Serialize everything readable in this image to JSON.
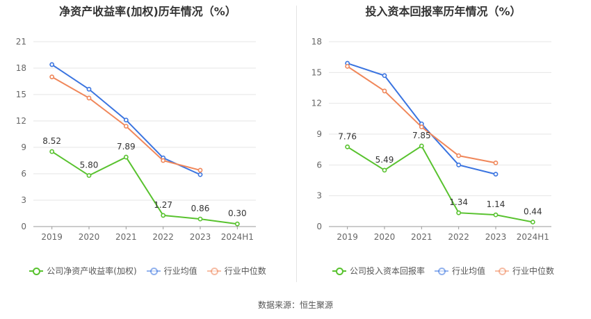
{
  "source_text": "数据来源：恒生聚源",
  "chart_data": [
    {
      "type": "line",
      "title": "净资产收益率(加权)历年情况（%）",
      "categories": [
        "2019",
        "2020",
        "2021",
        "2022",
        "2023",
        "2024H1"
      ],
      "yticks": [
        0,
        3,
        6,
        9,
        12,
        15,
        18,
        21
      ],
      "ylim": [
        0,
        21
      ],
      "grid": true,
      "legend_position": "bottom",
      "series": [
        {
          "name": "公司净资产收益率(加权)",
          "color": "#58c22e",
          "values": [
            8.52,
            5.8,
            7.89,
            1.27,
            0.86,
            0.3
          ],
          "labels": [
            "8.52",
            "5.80",
            "7.89",
            "1.27",
            "0.86",
            "0.30"
          ]
        },
        {
          "name": "行业均值",
          "color": "#3a74e0",
          "values": [
            18.4,
            15.6,
            12.1,
            7.8,
            5.9,
            null
          ]
        },
        {
          "name": "行业中位数",
          "color": "#f0875a",
          "values": [
            17.0,
            14.6,
            11.4,
            7.5,
            6.4,
            null
          ]
        }
      ]
    },
    {
      "type": "line",
      "title": "投入资本回报率历年情况（%）",
      "categories": [
        "2019",
        "2020",
        "2021",
        "2022",
        "2023",
        "2024H1"
      ],
      "yticks": [
        0,
        3,
        6,
        9,
        12,
        15,
        18
      ],
      "ylim": [
        0,
        18
      ],
      "grid": true,
      "legend_position": "bottom",
      "series": [
        {
          "name": "公司投入资本回报率",
          "color": "#58c22e",
          "values": [
            7.76,
            5.49,
            7.85,
            1.34,
            1.14,
            0.44
          ],
          "labels": [
            "7.76",
            "5.49",
            "7.85",
            "1.34",
            "1.14",
            "0.44"
          ]
        },
        {
          "name": "行业均值",
          "color": "#3a74e0",
          "values": [
            15.9,
            14.7,
            10.0,
            6.0,
            5.1,
            null
          ]
        },
        {
          "name": "行业中位数",
          "color": "#f0875a",
          "values": [
            15.6,
            13.2,
            9.7,
            6.9,
            6.2,
            null
          ]
        }
      ]
    }
  ]
}
